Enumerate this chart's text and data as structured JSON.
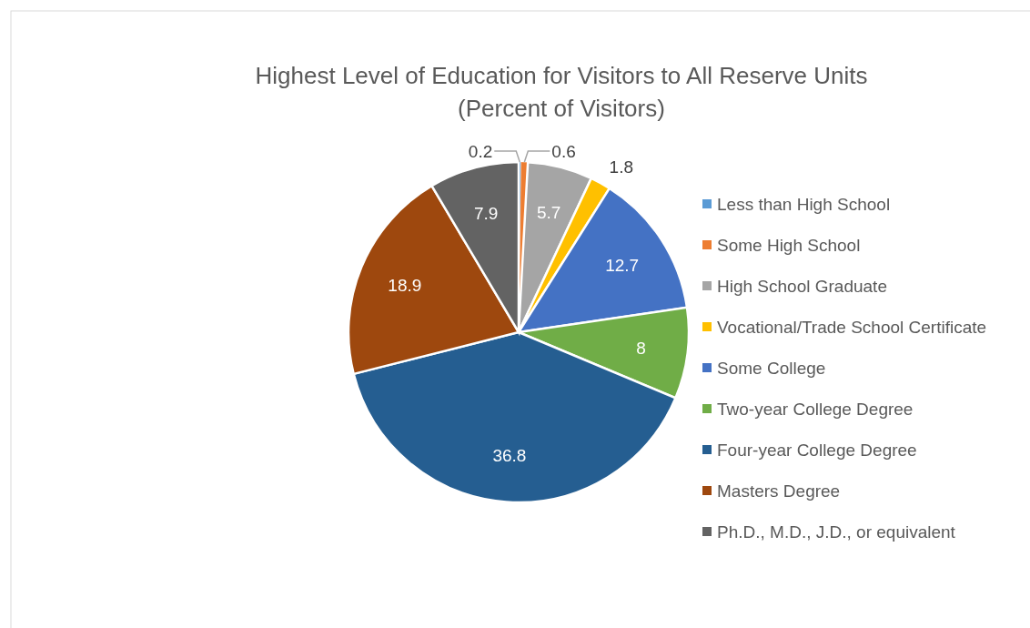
{
  "chart_data": {
    "type": "pie",
    "title": "Highest Level of Education for Visitors to All Reserve Units",
    "subtitle": "(Percent of Visitors)",
    "categories": [
      "Less than High School",
      "Some High School",
      "High School Graduate",
      "Vocational/Trade School Certificate",
      "Some College",
      "Two-year College Degree",
      "Four-year College Degree",
      "Masters Degree",
      "Ph.D., M.D., J.D., or equivalent"
    ],
    "values": [
      0.2,
      0.6,
      5.7,
      1.8,
      12.7,
      8,
      36.8,
      18.9,
      7.9
    ],
    "colors": [
      "#5b9bd5",
      "#ed7d31",
      "#a5a5a5",
      "#ffc000",
      "#4472c4",
      "#70ad47",
      "#255e91",
      "#9e480e",
      "#636363"
    ],
    "data_labels": true,
    "legend": "right"
  }
}
